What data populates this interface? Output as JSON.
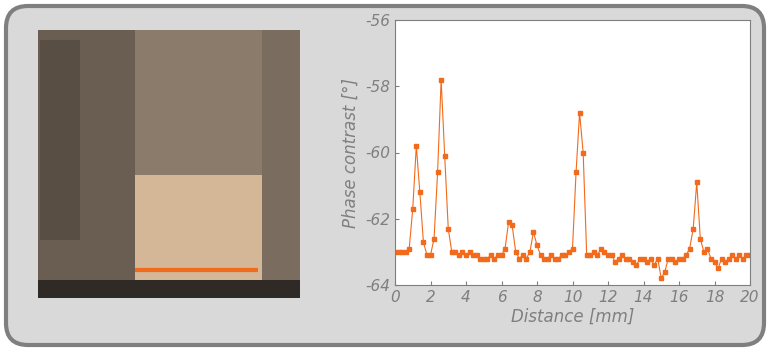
{
  "chart_data": {
    "type": "line",
    "xlabel": "Distance [mm]",
    "ylabel": "Phase contrast [°]",
    "color": "#f26a1b",
    "marker": "square",
    "line_style": "solid",
    "xlim": [
      0,
      20
    ],
    "ylim": [
      -64,
      -56
    ],
    "xticks": [
      0,
      2,
      4,
      6,
      8,
      10,
      12,
      14,
      16,
      18,
      20
    ],
    "yticks": [
      -64,
      -62,
      -60,
      -58,
      -56
    ],
    "x": [
      0.0,
      0.2,
      0.4,
      0.6,
      0.8,
      1.0,
      1.2,
      1.4,
      1.6,
      1.8,
      2.0,
      2.2,
      2.4,
      2.6,
      2.8,
      3.0,
      3.2,
      3.4,
      3.6,
      3.8,
      4.0,
      4.2,
      4.4,
      4.6,
      4.8,
      5.0,
      5.2,
      5.4,
      5.6,
      5.8,
      6.0,
      6.2,
      6.4,
      6.6,
      6.8,
      7.0,
      7.2,
      7.4,
      7.6,
      7.8,
      8.0,
      8.2,
      8.4,
      8.6,
      8.8,
      9.0,
      9.2,
      9.4,
      9.6,
      9.8,
      10.0,
      10.2,
      10.4,
      10.6,
      10.8,
      11.0,
      11.2,
      11.4,
      11.6,
      11.8,
      12.0,
      12.2,
      12.4,
      12.6,
      12.8,
      13.0,
      13.2,
      13.4,
      13.6,
      13.8,
      14.0,
      14.2,
      14.4,
      14.6,
      14.8,
      15.0,
      15.2,
      15.4,
      15.6,
      15.8,
      16.0,
      16.2,
      16.4,
      16.6,
      16.8,
      17.0,
      17.2,
      17.4,
      17.6,
      17.8,
      18.0,
      18.2,
      18.4,
      18.6,
      18.8,
      19.0,
      19.2,
      19.4,
      19.6,
      19.8,
      20.0
    ],
    "values": [
      -63.0,
      -63.0,
      -63.0,
      -63.0,
      -62.9,
      -61.7,
      -59.8,
      -61.2,
      -62.7,
      -63.1,
      -63.1,
      -62.6,
      -60.6,
      -57.8,
      -60.1,
      -62.3,
      -63.0,
      -63.0,
      -63.1,
      -63.0,
      -63.1,
      -63.0,
      -63.1,
      -63.1,
      -63.2,
      -63.2,
      -63.2,
      -63.1,
      -63.2,
      -63.1,
      -63.1,
      -62.9,
      -62.1,
      -62.2,
      -63.0,
      -63.2,
      -63.1,
      -63.2,
      -63.0,
      -62.4,
      -62.8,
      -63.1,
      -63.2,
      -63.2,
      -63.1,
      -63.2,
      -63.2,
      -63.1,
      -63.1,
      -63.0,
      -62.9,
      -60.6,
      -58.8,
      -60.0,
      -63.1,
      -63.1,
      -63.0,
      -63.1,
      -62.9,
      -63.0,
      -63.1,
      -63.1,
      -63.3,
      -63.2,
      -63.1,
      -63.2,
      -63.2,
      -63.3,
      -63.4,
      -63.2,
      -63.2,
      -63.3,
      -63.2,
      -63.4,
      -63.2,
      -63.8,
      -63.6,
      -63.2,
      -63.2,
      -63.3,
      -63.2,
      -63.2,
      -63.1,
      -62.9,
      -62.3,
      -60.9,
      -62.6,
      -63.0,
      -62.9,
      -63.2,
      -63.3,
      -63.5,
      -63.2,
      -63.3,
      -63.2,
      -63.1,
      -63.2,
      -63.1,
      -63.2,
      -63.1,
      -63.1
    ]
  }
}
